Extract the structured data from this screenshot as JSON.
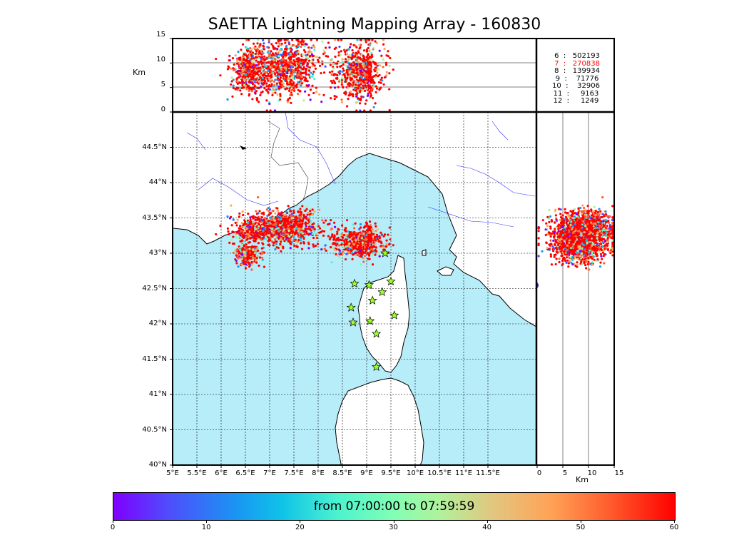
{
  "title": "SAETTA Lightning Mapping Array - 160830",
  "altitude_axis": {
    "unit_label": "Km",
    "ticks": [
      "0",
      "5",
      "10",
      "15"
    ]
  },
  "map_axes": {
    "lat_ticks": [
      "40°N",
      "40.5°N",
      "41°N",
      "41.5°N",
      "42°N",
      "42.5°N",
      "43°N",
      "43.5°N",
      "44°N",
      "44.5°N"
    ],
    "lon_ticks": [
      "5°E",
      "5.5°E",
      "6°E",
      "6.5°E",
      "7°E",
      "7.5°E",
      "8°E",
      "8.5°E",
      "9°E",
      "9.5°E",
      "10°E",
      "10.5°E",
      "11°E",
      "11.5°E"
    ],
    "lat_range": [
      40,
      45
    ],
    "lon_range": [
      5,
      12.5
    ]
  },
  "station_stats": [
    {
      "stations": "6",
      "count": "502193",
      "color": "#000000"
    },
    {
      "stations": "7",
      "count": "270838",
      "color": "#ff0000"
    },
    {
      "stations": "8",
      "count": "139934",
      "color": "#000000"
    },
    {
      "stations": "9",
      "count": "71776",
      "color": "#000000"
    },
    {
      "stations": "10",
      "count": "32906",
      "color": "#000000"
    },
    {
      "stations": "11",
      "count": "9163",
      "color": "#000000"
    },
    {
      "stations": "12",
      "count": "1249",
      "color": "#000000"
    }
  ],
  "colorbar": {
    "label": "from 07:00:00 to 07:59:59",
    "ticks": [
      "0",
      "10",
      "20",
      "30",
      "40",
      "50",
      "60"
    ],
    "range": [
      0,
      60
    ]
  },
  "stations": [
    {
      "lon": 9.38,
      "lat": 43.0
    },
    {
      "lon": 8.75,
      "lat": 42.57
    },
    {
      "lon": 9.05,
      "lat": 42.55
    },
    {
      "lon": 9.5,
      "lat": 42.6
    },
    {
      "lon": 9.32,
      "lat": 42.45
    },
    {
      "lon": 9.12,
      "lat": 42.33
    },
    {
      "lon": 8.68,
      "lat": 42.23
    },
    {
      "lon": 9.57,
      "lat": 42.12
    },
    {
      "lon": 8.72,
      "lat": 42.02
    },
    {
      "lon": 9.07,
      "lat": 42.04
    },
    {
      "lon": 9.2,
      "lat": 41.86
    },
    {
      "lon": 9.2,
      "lat": 41.39
    }
  ],
  "storm_cells": [
    {
      "lon": 7.3,
      "lat": 43.37,
      "spread_lon": 0.35,
      "spread_lat": 0.12,
      "n": 900,
      "alt_center": 9,
      "alt_spread": 3
    },
    {
      "lon": 6.55,
      "lat": 42.98,
      "spread_lon": 0.12,
      "spread_lat": 0.08,
      "n": 250,
      "alt_center": 8,
      "alt_spread": 2
    },
    {
      "lon": 6.6,
      "lat": 43.32,
      "spread_lon": 0.2,
      "spread_lat": 0.1,
      "n": 200,
      "alt_center": 8,
      "alt_spread": 2.5
    },
    {
      "lon": 8.85,
      "lat": 43.15,
      "spread_lon": 0.25,
      "spread_lat": 0.1,
      "n": 600,
      "alt_center": 8,
      "alt_spread": 3
    },
    {
      "lon": 9.05,
      "lat": 43.25,
      "spread_lon": 0.05,
      "spread_lat": 0.08,
      "n": 90,
      "alt_center": 8,
      "alt_spread": 2
    }
  ]
}
